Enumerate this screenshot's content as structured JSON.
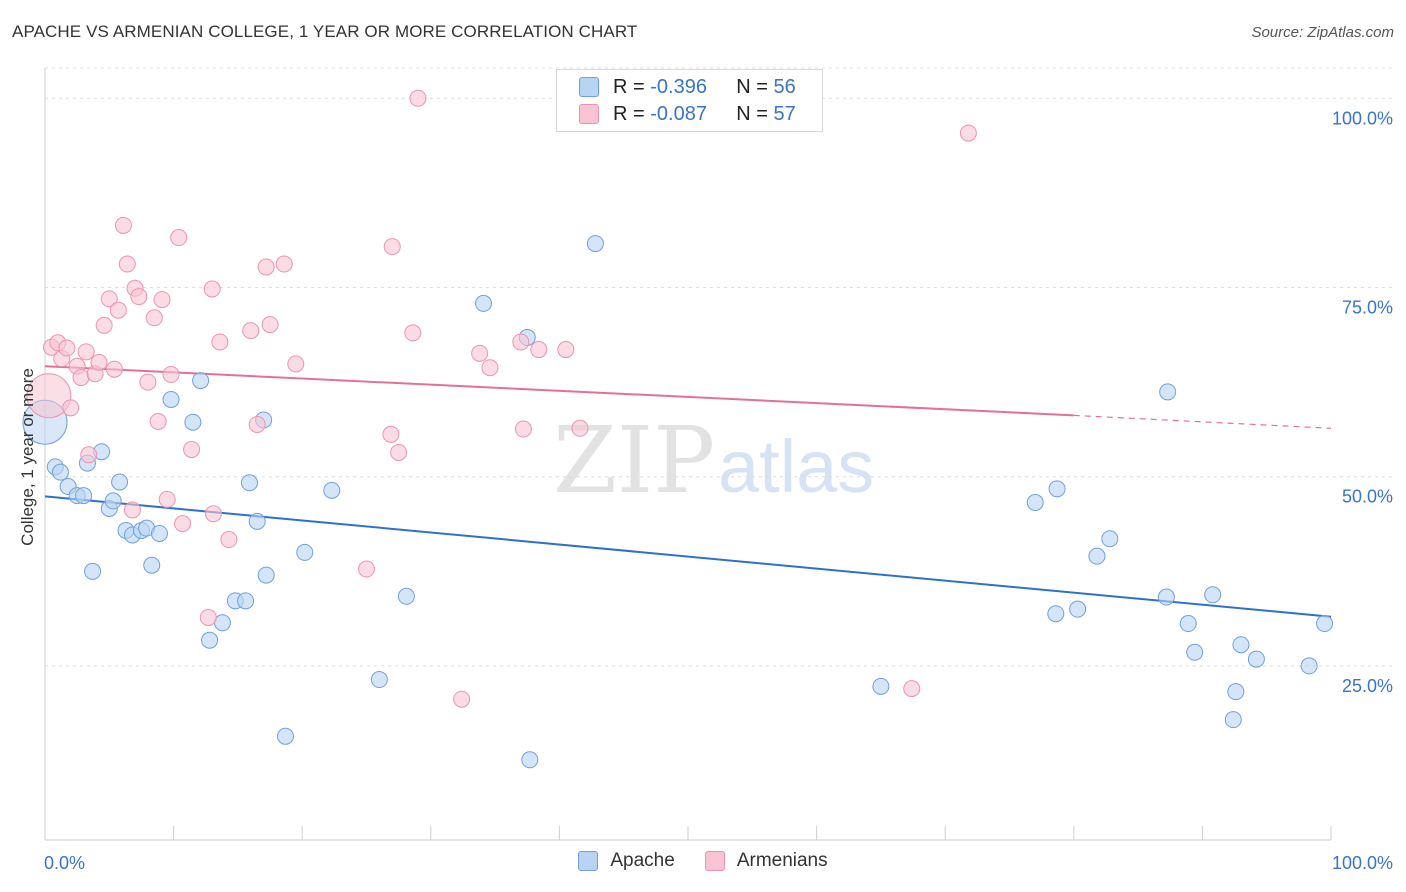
{
  "header": {
    "title": "APACHE VS ARMENIAN COLLEGE, 1 YEAR OR MORE CORRELATION CHART",
    "source": "Source: ZipAtlas.com"
  },
  "watermark": {
    "part1": "ZIP",
    "part2": "atlas"
  },
  "legend_top": {
    "apache": {
      "r_label": "R = ",
      "r_value": "-0.396",
      "n_label": "N = ",
      "n_value": "56"
    },
    "armenians": {
      "r_label": "R = ",
      "r_value": "-0.087",
      "n_label": "N = ",
      "n_value": "57"
    }
  },
  "legend_bottom": {
    "apache": "Apache",
    "armenians": "Armenians"
  },
  "colors": {
    "apache_fill": "#b9d3f3",
    "apache_stroke": "#6fa0dc",
    "apache_line": "#2e6fcf",
    "armenians_fill": "#f8c4d4",
    "armenians_stroke": "#ec93b0",
    "armenians_line": "#e4709a",
    "axis_label": "#3a74c9",
    "grid": "#dcdcdc"
  },
  "chart_data": {
    "type": "scatter",
    "title": "APACHE VS ARMENIAN COLLEGE, 1 YEAR OR MORE CORRELATION CHART",
    "xlabel": "",
    "ylabel": "College, 1 year or more",
    "xlim": [
      0,
      100
    ],
    "ylim": [
      2,
      104
    ],
    "x_tick_labels": [
      "0.0%",
      "100.0%"
    ],
    "y_ticks": [
      25,
      50,
      75,
      100
    ],
    "y_tick_labels": [
      "25.0%",
      "50.0%",
      "75.0%",
      "100.0%"
    ],
    "grid": true,
    "series": [
      {
        "name": "Apache",
        "r": -0.396,
        "n": 56,
        "trend": {
          "x0": 0,
          "y0": 47.4,
          "x1": 100,
          "y1": 31.5
        },
        "points": [
          [
            0.0,
            57.2,
            "big"
          ],
          [
            0.8,
            51.3
          ],
          [
            1.2,
            50.6
          ],
          [
            1.8,
            48.7
          ],
          [
            2.5,
            47.5
          ],
          [
            3.0,
            47.5
          ],
          [
            3.7,
            37.5
          ],
          [
            4.4,
            53.3
          ],
          [
            3.3,
            51.8
          ],
          [
            5.0,
            45.8
          ],
          [
            5.3,
            46.8
          ],
          [
            5.8,
            49.3
          ],
          [
            6.3,
            42.9
          ],
          [
            6.8,
            42.3
          ],
          [
            7.5,
            42.9
          ],
          [
            7.9,
            43.2
          ],
          [
            8.3,
            38.3
          ],
          [
            8.9,
            42.5
          ],
          [
            9.8,
            60.2
          ],
          [
            11.5,
            57.2
          ],
          [
            12.1,
            62.7
          ],
          [
            12.8,
            28.4
          ],
          [
            13.8,
            30.7
          ],
          [
            14.8,
            33.6
          ],
          [
            15.6,
            33.6
          ],
          [
            15.9,
            49.2
          ],
          [
            16.5,
            44.1
          ],
          [
            17.0,
            57.5
          ],
          [
            17.2,
            37.0
          ],
          [
            18.7,
            15.7
          ],
          [
            20.2,
            40.0
          ],
          [
            22.3,
            48.2
          ],
          [
            26.0,
            23.2
          ],
          [
            28.1,
            34.2
          ],
          [
            34.1,
            72.9
          ],
          [
            37.5,
            68.4
          ],
          [
            37.7,
            12.6
          ],
          [
            42.8,
            80.8
          ],
          [
            65.0,
            22.3
          ],
          [
            77.0,
            46.6
          ],
          [
            78.7,
            48.4
          ],
          [
            78.6,
            31.9
          ],
          [
            80.3,
            32.5
          ],
          [
            81.8,
            39.5
          ],
          [
            82.8,
            41.8
          ],
          [
            87.2,
            34.1
          ],
          [
            87.3,
            61.2
          ],
          [
            88.9,
            30.6
          ],
          [
            89.4,
            26.8
          ],
          [
            90.8,
            34.4
          ],
          [
            92.4,
            17.9
          ],
          [
            92.6,
            21.6
          ],
          [
            93.0,
            27.8
          ],
          [
            94.2,
            25.9
          ],
          [
            98.3,
            25.0
          ],
          [
            99.5,
            30.6
          ]
        ]
      },
      {
        "name": "Armenians",
        "r": -0.087,
        "n": 57,
        "trend": {
          "x0": 0,
          "y0": 64.6,
          "x1": 80,
          "y1": 58.1,
          "dash_to_x": 100,
          "dash_to_y": 56.4
        },
        "points": [
          [
            0.3,
            60.7,
            "big"
          ],
          [
            0.5,
            67.1
          ],
          [
            1.0,
            67.7
          ],
          [
            1.3,
            65.6
          ],
          [
            1.7,
            67.0
          ],
          [
            2.0,
            59.1
          ],
          [
            2.5,
            64.6
          ],
          [
            2.8,
            63.1
          ],
          [
            3.2,
            66.5
          ],
          [
            3.4,
            52.9
          ],
          [
            3.9,
            63.6
          ],
          [
            4.2,
            65.1
          ],
          [
            4.6,
            70.0
          ],
          [
            5.0,
            73.5
          ],
          [
            5.4,
            64.2
          ],
          [
            5.7,
            72.0
          ],
          [
            6.1,
            83.2
          ],
          [
            6.4,
            78.1
          ],
          [
            6.8,
            45.6
          ],
          [
            7.0,
            74.9
          ],
          [
            7.3,
            73.8
          ],
          [
            8.0,
            62.5
          ],
          [
            8.5,
            71.0
          ],
          [
            8.8,
            57.3
          ],
          [
            9.1,
            73.4
          ],
          [
            9.5,
            47.0
          ],
          [
            9.8,
            63.5
          ],
          [
            10.4,
            81.6
          ],
          [
            10.7,
            43.8
          ],
          [
            11.4,
            53.6
          ],
          [
            12.7,
            31.4
          ],
          [
            13.0,
            74.8
          ],
          [
            13.1,
            45.1
          ],
          [
            13.6,
            67.8
          ],
          [
            14.3,
            41.7
          ],
          [
            16.0,
            69.3
          ],
          [
            16.5,
            56.9
          ],
          [
            17.2,
            77.7
          ],
          [
            17.5,
            70.1
          ],
          [
            18.6,
            78.1
          ],
          [
            19.5,
            64.9
          ],
          [
            25.0,
            37.8
          ],
          [
            26.9,
            55.6
          ],
          [
            27.0,
            80.4
          ],
          [
            27.5,
            53.2
          ],
          [
            28.6,
            69.0
          ],
          [
            29.0,
            100.0
          ],
          [
            32.4,
            20.6
          ],
          [
            33.8,
            66.3
          ],
          [
            34.6,
            64.4
          ],
          [
            37.0,
            67.8
          ],
          [
            37.2,
            56.3
          ],
          [
            38.4,
            66.8
          ],
          [
            40.5,
            66.8
          ],
          [
            41.6,
            56.4
          ],
          [
            67.4,
            22.0
          ],
          [
            71.8,
            95.4
          ]
        ]
      }
    ]
  }
}
